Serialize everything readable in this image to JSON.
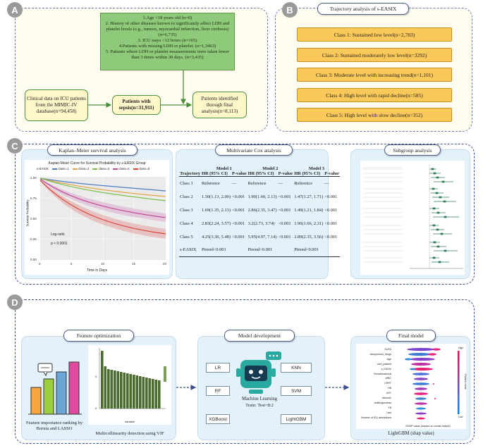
{
  "panel_a": {
    "badge": "A",
    "exclusion_text": [
      "1.Age <18 years old (n=0)",
      "2. History of other diseases known to significantly affect LDH and platelet levels (e.g., tumors, myocardial infarction, liver cirrhosis) (n=6,735)",
      "3. ICU stays <12 hours (n=165)",
      "4.Patients with missing LDH or platelet. (n=1,3463)",
      "5. Patients where LDH or platelet measurements were taken fewer than 3 times within 30 days. (n=3,435)"
    ],
    "source_box": "Clinical data on ICU patients from the MIMIC-IV database(n=94,458)",
    "sepsis_box": "Patients with sepsis(n=31,911)",
    "final_box": "Patients identified through final analysis(n=8,113)"
  },
  "panel_b": {
    "badge": "B",
    "title": "Trajectory analysis of s-EASIX",
    "classes": [
      "Class 1: Sustained low level(n=2,783)",
      "Class 2: Sustained moderately low level(n=3292)",
      "Class 3: Moderate level with increasing trend(n=1,101)",
      "Class 4: High level with rapid decline(n=585)",
      "Class 5: High level with slow decline(n=352)"
    ]
  },
  "panel_c": {
    "badge": "C",
    "km_title": "Kaplan–Meier survival analysis",
    "km_plot_title": "Kaplan-Meier Curve for Survival Probability by s-EASIX Group",
    "km_legend_label": "s-EASIX",
    "km_legend": [
      "class=1",
      "class=2",
      "class=3",
      "class=4",
      "class=5"
    ],
    "km_xlabel": "Time in Days",
    "km_ylabel": "Survival Probability",
    "km_logrank": "Log-rank",
    "km_p": "p < 0.0001",
    "cox_title": "Multivariate Cox analysis",
    "cox_headers": [
      "Trajectory",
      "Model 1",
      "Model 2",
      "Model 3"
    ],
    "cox_subheaders": [
      "HR (95% CI)",
      "P-value",
      "HR (95% CI)",
      "P-value",
      "HR (95% CI)",
      "P-value"
    ],
    "cox_rows": [
      [
        "Class 1",
        "Reference",
        "—",
        "Reference",
        "—",
        "Reference",
        "—"
      ],
      [
        "Class 2",
        "1.50(1.13, 2.00)",
        "<0.001",
        "1.90(1.60, 2.13)",
        "<0.001",
        "1.47(1.27, 1.71)",
        "<0.001"
      ],
      [
        "Class 3",
        "1.69(1.35, 2.13)",
        "<0.001",
        "2.86(2.35, 3.47)",
        "<0.001",
        "1.49(1.21, 1.84)",
        "<0.001"
      ],
      [
        "Class 4",
        "2.83(2.24, 3.57)",
        "<0.001",
        "3.2(2.73, 3.74)",
        "<0.001",
        "1.96(1.66, 2.31)",
        "<0.001"
      ],
      [
        "Class 5",
        "4.25(3.30, 5.48)",
        "<0.001",
        "5.95(4.97, 7.14)",
        "<0.001",
        "2.89(2.35, 3.56)",
        "<0.001"
      ],
      [
        "s-EASIX",
        "Ptrend<0.001",
        "",
        "Ptrend<0.001",
        "",
        "Ptrend<0.001",
        ""
      ]
    ],
    "subgroup_title": "Subgroup analysis"
  },
  "panel_d": {
    "badge": "D",
    "feature_title": "Feature optimization",
    "feature_caption": "Feature importance ranking by Boruta and LASSO",
    "vif_caption": "Multicollinearity detection using VIF",
    "vif_xlabel": "Variable",
    "model_title": "Model development",
    "models_left": [
      "LR",
      "RF",
      "XGBoost"
    ],
    "models_right": [
      "KNN",
      "SVM",
      "LightGBM"
    ],
    "ml_caption": "Machine Learning",
    "ml_sub": "Train: Test=8:2",
    "final_title": "Final model",
    "final_caption": "LightGBM (shap value)",
    "shap_features": [
      "SOFA",
      "vasopressor_drugs",
      "Age",
      "mini_platelet",
      "s_EASIX",
      "Renalfunctional",
      "WBC",
      "CRRT",
      "HB",
      "AST",
      "Albumin",
      "antibiogerobias",
      "TB",
      "Lact",
      "Number of ICU admissions"
    ],
    "shap_xlabel": "SHAP value (impact on model output)",
    "shap_high": "High",
    "shap_low": "Low",
    "shap_feature_value": "Feature value"
  },
  "colors": {
    "panel_border": "#3a4f8c",
    "green_box": "#8fc97a",
    "yellow_box": "#fff6c9",
    "orange_class": "#fbc95a",
    "light_blue": "#e3f1fb",
    "km_series": [
      "#4a7fc1",
      "#e3a44a",
      "#7bbf4a",
      "#c04a9a",
      "#d9443a"
    ]
  }
}
